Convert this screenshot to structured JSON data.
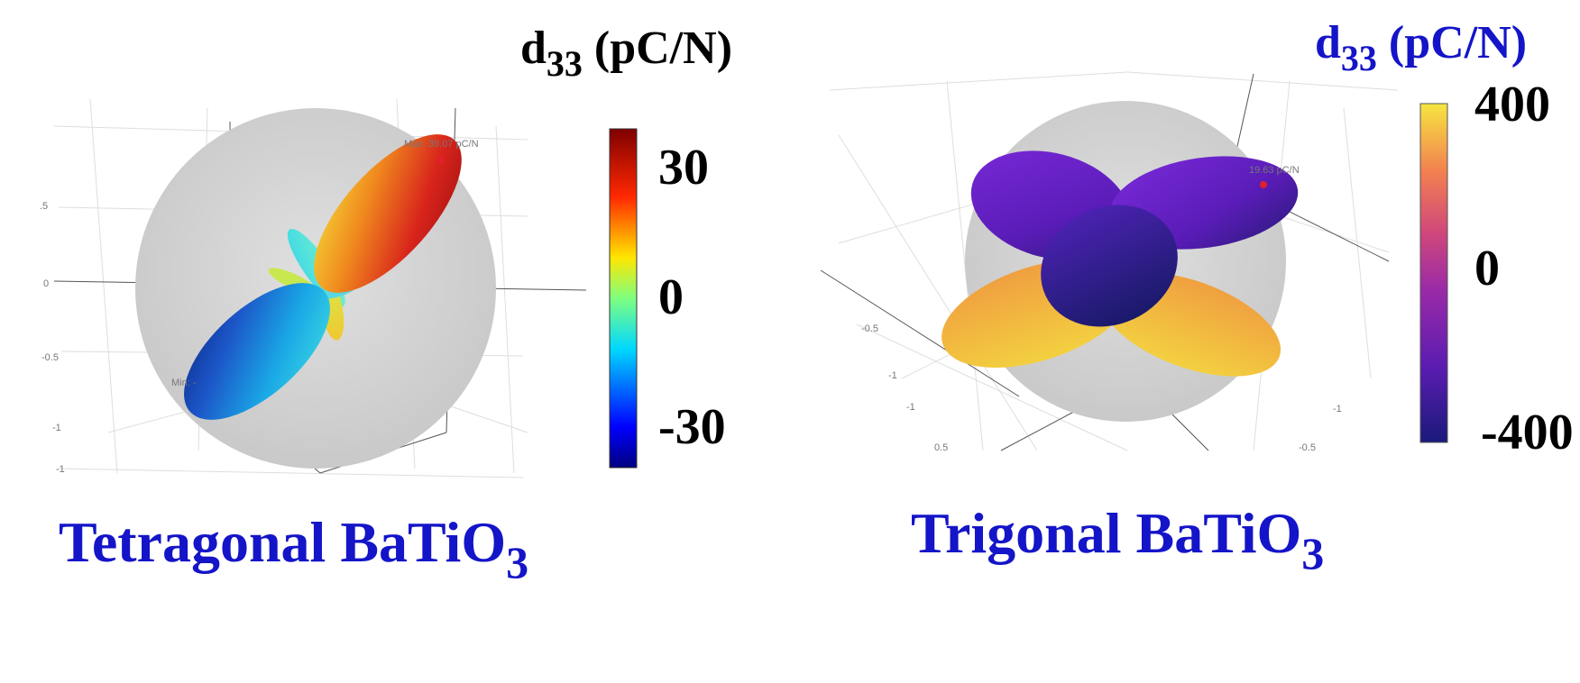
{
  "panels": [
    {
      "colorbar": {
        "title_main": "d",
        "title_sub": "33",
        "title_unit": " (pC/N)",
        "ticks": [
          "30",
          "0",
          "-30"
        ],
        "title_color": "#000000"
      },
      "annotations": {
        "max": "Max: 39.07 pC/N",
        "min": "Min: -"
      },
      "axis_ticks": [
        ".5",
        "0",
        "-0.5",
        "-1",
        "-1"
      ],
      "material_main": "Tetragonal BaTiO",
      "material_sub": "3",
      "colormap": "jet"
    },
    {
      "colorbar": {
        "title_main": "d",
        "title_sub": "33",
        "title_unit": " (pC/N)",
        "ticks": [
          "400",
          "0",
          "-400"
        ],
        "title_color": "#1414c8"
      },
      "annotations": {
        "max": "19.63 pC/N"
      },
      "axis_ticks": [
        "-0.5",
        "-1",
        "-1",
        "0.5",
        "-1",
        "-0.5"
      ],
      "material_main": "Trigonal BaTiO",
      "material_sub": "3",
      "colormap": "plasma"
    }
  ],
  "colors": {
    "sphere": "#d3d3d3",
    "material_label": "#1414c8",
    "max_marker": "#e0202a"
  }
}
